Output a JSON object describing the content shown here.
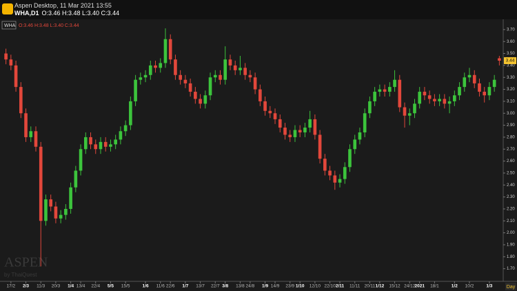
{
  "header": {
    "app_title": "Aspen Desktop, 11 Mar 2021 13:55",
    "symbol": "WHA,D1",
    "ohlc": "O:3.46 H:3.48 L:3.40 C:3.44",
    "legend_symbol": "WHA",
    "timeframe": "Day"
  },
  "watermark": {
    "name": "ASPEN",
    "by": "by ThaiQuest"
  },
  "chart_data": {
    "type": "candlestick",
    "up_color": "#3cc43c",
    "down_color": "#e2473b",
    "xlim": [
      0,
      100
    ],
    "ylim": [
      1.6,
      3.78
    ],
    "yticks": [
      {
        "value": 1.7,
        "label": "1.70"
      },
      {
        "value": 1.8,
        "label": "1.80"
      },
      {
        "value": 1.9,
        "label": "1.90"
      },
      {
        "value": 2.0,
        "label": "2.00"
      },
      {
        "value": 2.1,
        "label": "2.10"
      },
      {
        "value": 2.2,
        "label": "2.20"
      },
      {
        "value": 2.3,
        "label": "2.30"
      },
      {
        "value": 2.4,
        "label": "2.40"
      },
      {
        "value": 2.5,
        "label": "2.50"
      },
      {
        "value": 2.6,
        "label": "2.60"
      },
      {
        "value": 2.7,
        "label": "2.70"
      },
      {
        "value": 2.8,
        "label": "2.80"
      },
      {
        "value": 2.9,
        "label": "2.90"
      },
      {
        "value": 3.0,
        "label": "3.00"
      },
      {
        "value": 3.1,
        "label": "3.10"
      },
      {
        "value": 3.2,
        "label": "3.20"
      },
      {
        "value": 3.3,
        "label": "3.30"
      },
      {
        "value": 3.4,
        "label": "3.40"
      },
      {
        "value": 3.5,
        "label": "3.50"
      },
      {
        "value": 3.6,
        "label": "3.60"
      },
      {
        "value": 3.7,
        "label": "3.70"
      }
    ],
    "xticks": [
      {
        "value": 1,
        "label": "17/2"
      },
      {
        "value": 4,
        "label": "2/3",
        "major": true
      },
      {
        "value": 7,
        "label": "11/3"
      },
      {
        "value": 10,
        "label": "20/3"
      },
      {
        "value": 13,
        "label": "1/4",
        "major": true
      },
      {
        "value": 15,
        "label": "13/4"
      },
      {
        "value": 18,
        "label": "22/4"
      },
      {
        "value": 21,
        "label": "5/5",
        "major": true
      },
      {
        "value": 24,
        "label": "15/5"
      },
      {
        "value": 28,
        "label": "1/6",
        "major": true
      },
      {
        "value": 31,
        "label": "11/6"
      },
      {
        "value": 33,
        "label": "22/6"
      },
      {
        "value": 36,
        "label": "1/7",
        "major": true
      },
      {
        "value": 39,
        "label": "13/7"
      },
      {
        "value": 42,
        "label": "22/7"
      },
      {
        "value": 44,
        "label": "3/8",
        "major": true
      },
      {
        "value": 47,
        "label": "13/8"
      },
      {
        "value": 49,
        "label": "24/8"
      },
      {
        "value": 52,
        "label": "1/9",
        "major": true
      },
      {
        "value": 54,
        "label": "14/9"
      },
      {
        "value": 57,
        "label": "23/9"
      },
      {
        "value": 59,
        "label": "1/10",
        "major": true
      },
      {
        "value": 62,
        "label": "12/10"
      },
      {
        "value": 65,
        "label": "22/10"
      },
      {
        "value": 67,
        "label": "2/11",
        "major": true
      },
      {
        "value": 70,
        "label": "11/11"
      },
      {
        "value": 73,
        "label": "20/11"
      },
      {
        "value": 75,
        "label": "1/12",
        "major": true
      },
      {
        "value": 78,
        "label": "15/12"
      },
      {
        "value": 81,
        "label": "24/12"
      },
      {
        "value": 83,
        "label": "2021",
        "major": true
      },
      {
        "value": 86,
        "label": "18/1"
      },
      {
        "value": 90,
        "label": "1/2",
        "major": true
      },
      {
        "value": 93,
        "label": "10/2"
      },
      {
        "value": 97,
        "label": "1/3",
        "major": true
      }
    ],
    "open": [
      3.5,
      3.45,
      3.4,
      3.22,
      3.0,
      2.8,
      2.85,
      2.72,
      2.1,
      2.28,
      2.22,
      2.12,
      2.15,
      2.2,
      2.38,
      2.52,
      2.7,
      2.8,
      2.74,
      2.7,
      2.76,
      2.72,
      2.74,
      2.78,
      2.85,
      2.9,
      3.1,
      3.28,
      3.3,
      3.32,
      3.4,
      3.38,
      3.42,
      3.62,
      3.45,
      3.32,
      3.28,
      3.25,
      3.18,
      3.12,
      3.08,
      3.15,
      3.3,
      3.32,
      3.28,
      3.45,
      3.4,
      3.36,
      3.38,
      3.32,
      3.3,
      3.2,
      3.1,
      3.02,
      3.0,
      2.95,
      2.88,
      2.82,
      2.8,
      2.86,
      2.84,
      2.88,
      2.95,
      2.82,
      2.62,
      2.52,
      2.48,
      2.42,
      2.45,
      2.55,
      2.7,
      2.78,
      2.84,
      3.0,
      3.1,
      3.18,
      3.2,
      3.18,
      3.22,
      3.28,
      3.05,
      2.98,
      3.0,
      3.08,
      3.18,
      3.15,
      3.12,
      3.1,
      3.12,
      3.08,
      3.1,
      3.15,
      3.22,
      3.3,
      3.32,
      3.25,
      3.18,
      3.15,
      3.22,
      3.46
    ],
    "high": [
      3.54,
      3.49,
      3.44,
      3.26,
      3.04,
      2.89,
      2.89,
      2.76,
      2.32,
      2.32,
      2.26,
      2.19,
      2.24,
      2.42,
      2.56,
      2.74,
      2.84,
      2.84,
      2.78,
      2.8,
      2.8,
      2.78,
      2.82,
      2.89,
      2.94,
      3.14,
      3.32,
      3.34,
      3.36,
      3.44,
      3.44,
      3.46,
      3.71,
      3.66,
      3.49,
      3.36,
      3.32,
      3.29,
      3.22,
      3.16,
      3.19,
      3.34,
      3.36,
      3.36,
      3.56,
      3.49,
      3.44,
      3.48,
      3.42,
      3.36,
      3.34,
      3.24,
      3.14,
      3.06,
      3.04,
      2.99,
      2.92,
      2.86,
      2.9,
      2.9,
      2.92,
      3.02,
      2.99,
      2.86,
      2.66,
      2.56,
      2.52,
      2.49,
      2.59,
      2.74,
      2.82,
      2.88,
      3.04,
      3.14,
      3.22,
      3.24,
      3.24,
      3.26,
      3.36,
      3.32,
      3.09,
      3.04,
      3.12,
      3.22,
      3.22,
      3.19,
      3.16,
      3.16,
      3.16,
      3.14,
      3.19,
      3.26,
      3.34,
      3.38,
      3.36,
      3.29,
      3.22,
      3.26,
      3.32,
      3.48
    ],
    "low": [
      3.41,
      3.36,
      3.18,
      2.96,
      2.76,
      2.76,
      2.68,
      1.72,
      2.06,
      2.18,
      2.08,
      2.08,
      2.11,
      2.16,
      2.34,
      2.48,
      2.66,
      2.7,
      2.66,
      2.66,
      2.68,
      2.68,
      2.7,
      2.74,
      2.81,
      2.86,
      3.06,
      3.24,
      3.26,
      3.28,
      3.34,
      3.34,
      3.38,
      3.41,
      3.28,
      3.24,
      3.21,
      3.14,
      3.08,
      3.04,
      3.04,
      3.11,
      3.26,
      3.24,
      3.24,
      3.36,
      3.32,
      3.32,
      3.28,
      3.26,
      3.16,
      3.06,
      2.98,
      2.96,
      2.91,
      2.84,
      2.78,
      2.76,
      2.76,
      2.8,
      2.8,
      2.84,
      2.78,
      2.58,
      2.48,
      2.44,
      2.36,
      2.38,
      2.41,
      2.51,
      2.66,
      2.74,
      2.8,
      2.96,
      3.06,
      3.14,
      3.14,
      3.14,
      3.18,
      3.01,
      2.88,
      2.9,
      2.96,
      3.04,
      3.11,
      3.08,
      3.06,
      3.06,
      3.04,
      3.0,
      3.06,
      3.11,
      3.18,
      3.26,
      3.21,
      3.14,
      3.09,
      3.11,
      3.18,
      3.4
    ],
    "close": [
      3.45,
      3.4,
      3.22,
      3.0,
      2.8,
      2.85,
      2.72,
      2.1,
      2.28,
      2.22,
      2.12,
      2.15,
      2.2,
      2.38,
      2.52,
      2.7,
      2.8,
      2.74,
      2.7,
      2.76,
      2.72,
      2.74,
      2.78,
      2.85,
      2.9,
      3.1,
      3.28,
      3.3,
      3.32,
      3.4,
      3.38,
      3.42,
      3.62,
      3.45,
      3.32,
      3.28,
      3.25,
      3.18,
      3.12,
      3.08,
      3.15,
      3.3,
      3.32,
      3.28,
      3.45,
      3.4,
      3.36,
      3.38,
      3.32,
      3.3,
      3.2,
      3.1,
      3.02,
      3.0,
      2.95,
      2.88,
      2.82,
      2.8,
      2.86,
      2.84,
      2.88,
      2.95,
      2.82,
      2.62,
      2.52,
      2.48,
      2.42,
      2.45,
      2.55,
      2.7,
      2.78,
      2.84,
      3.0,
      3.1,
      3.18,
      3.2,
      3.18,
      3.22,
      3.28,
      3.05,
      2.98,
      3.0,
      3.08,
      3.18,
      3.15,
      3.12,
      3.1,
      3.12,
      3.08,
      3.1,
      3.15,
      3.22,
      3.3,
      3.32,
      3.25,
      3.18,
      3.15,
      3.22,
      3.28,
      3.44
    ]
  }
}
